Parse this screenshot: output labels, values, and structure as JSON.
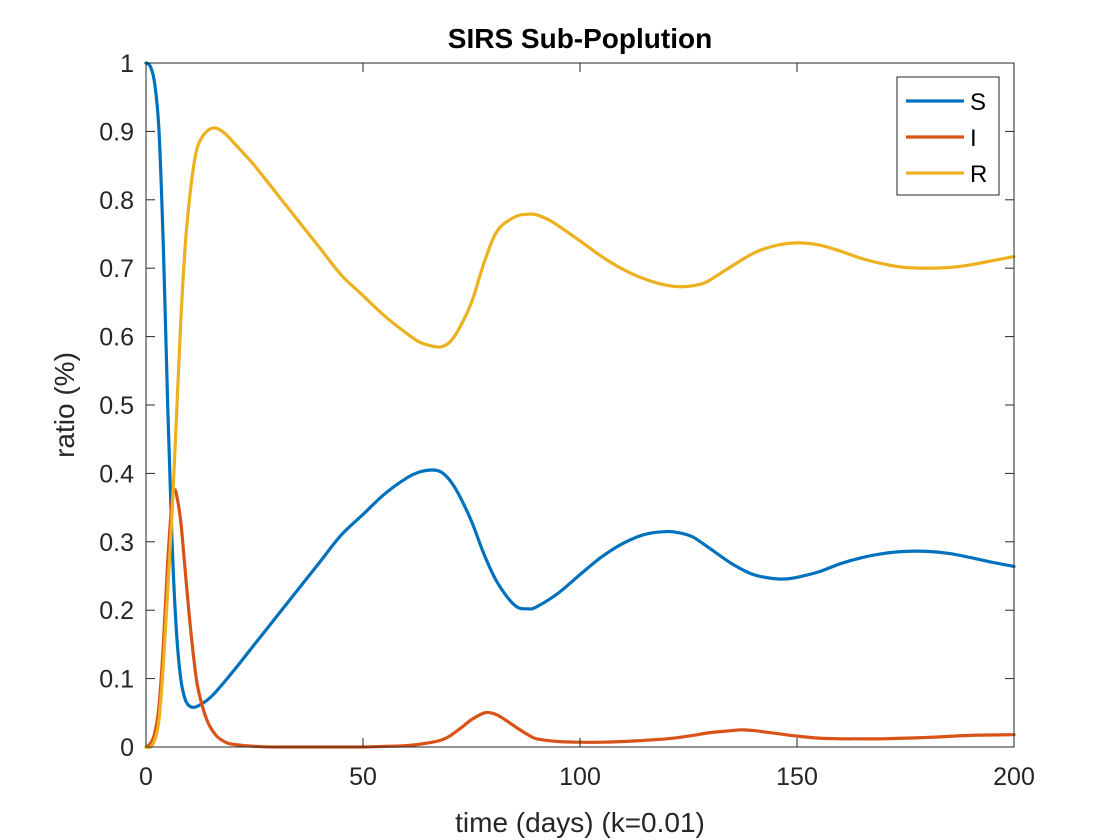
{
  "chart_data": {
    "type": "line",
    "title": "SIRS Sub-Poplution",
    "xlabel": "time (days) (k=0.01)",
    "ylabel": "ratio (%)",
    "xlim": [
      0,
      200
    ],
    "ylim": [
      0,
      1
    ],
    "xticks": [
      0,
      50,
      100,
      150,
      200
    ],
    "xtick_labels": [
      "0",
      "50",
      "100",
      "150",
      "200"
    ],
    "yticks": [
      0,
      0.1,
      0.2,
      0.3,
      0.4,
      0.5,
      0.6,
      0.7,
      0.8,
      0.9,
      1
    ],
    "ytick_labels": [
      "0",
      "0.1",
      "0.2",
      "0.3",
      "0.4",
      "0.5",
      "0.6",
      "0.7",
      "0.8",
      "0.9",
      "1"
    ],
    "grid": false,
    "legend_position": "top-right",
    "series": [
      {
        "name": "S",
        "color": "#0072BD",
        "x": [
          0,
          1,
          2,
          3,
          4,
          5,
          6,
          7,
          8,
          9,
          10,
          11,
          12,
          14,
          16,
          20,
          25,
          30,
          35,
          40,
          45,
          50,
          55,
          60,
          63,
          66,
          68,
          70,
          72,
          75,
          78,
          81,
          85,
          88,
          90,
          95,
          100,
          105,
          110,
          115,
          120,
          123,
          126,
          130,
          135,
          140,
          145,
          148,
          150,
          155,
          160,
          165,
          170,
          175,
          180,
          185,
          190,
          195,
          200
        ],
        "y": [
          1.0,
          0.995,
          0.97,
          0.9,
          0.73,
          0.5,
          0.3,
          0.17,
          0.1,
          0.07,
          0.06,
          0.058,
          0.06,
          0.068,
          0.08,
          0.11,
          0.15,
          0.19,
          0.23,
          0.27,
          0.31,
          0.34,
          0.37,
          0.393,
          0.402,
          0.405,
          0.402,
          0.39,
          0.37,
          0.33,
          0.28,
          0.24,
          0.207,
          0.202,
          0.205,
          0.225,
          0.252,
          0.278,
          0.298,
          0.311,
          0.315,
          0.313,
          0.307,
          0.29,
          0.268,
          0.252,
          0.246,
          0.246,
          0.248,
          0.256,
          0.268,
          0.277,
          0.283,
          0.286,
          0.286,
          0.283,
          0.277,
          0.27,
          0.264
        ]
      },
      {
        "name": "I",
        "color": "#D95319",
        "x": [
          0,
          1,
          2,
          3,
          4,
          5,
          6,
          6.5,
          7,
          8,
          9,
          10,
          11,
          12,
          14,
          16,
          18,
          20,
          25,
          30,
          40,
          50,
          55,
          60,
          65,
          68,
          70,
          73,
          75,
          78,
          80,
          82,
          85,
          88,
          90,
          95,
          100,
          105,
          110,
          120,
          125,
          130,
          135,
          137,
          140,
          145,
          150,
          155,
          160,
          165,
          170,
          180,
          190,
          200
        ],
        "y": [
          0.0,
          0.005,
          0.02,
          0.06,
          0.15,
          0.27,
          0.36,
          0.375,
          0.37,
          0.33,
          0.26,
          0.19,
          0.13,
          0.085,
          0.04,
          0.018,
          0.008,
          0.004,
          0.001,
          0.0,
          0.0,
          0.0,
          0.001,
          0.002,
          0.006,
          0.01,
          0.016,
          0.03,
          0.04,
          0.05,
          0.049,
          0.043,
          0.03,
          0.018,
          0.012,
          0.008,
          0.007,
          0.007,
          0.008,
          0.012,
          0.016,
          0.021,
          0.024,
          0.025,
          0.024,
          0.02,
          0.016,
          0.013,
          0.012,
          0.012,
          0.012,
          0.014,
          0.017,
          0.018
        ]
      },
      {
        "name": "R",
        "color": "#EDB120",
        "x": [
          0,
          1,
          2,
          3,
          4,
          5,
          6,
          7,
          8,
          9,
          10,
          11,
          12,
          14,
          16,
          18,
          20,
          25,
          30,
          35,
          40,
          45,
          50,
          55,
          60,
          63,
          66,
          68,
          70,
          72,
          75,
          78,
          81,
          85,
          88,
          90,
          93,
          95,
          100,
          105,
          110,
          115,
          120,
          124,
          128,
          130,
          135,
          140,
          145,
          150,
          155,
          160,
          165,
          170,
          175,
          180,
          185,
          190,
          195,
          200
        ],
        "y": [
          0.0,
          0.0,
          0.01,
          0.04,
          0.12,
          0.23,
          0.34,
          0.48,
          0.62,
          0.73,
          0.8,
          0.85,
          0.88,
          0.9,
          0.905,
          0.898,
          0.885,
          0.85,
          0.81,
          0.77,
          0.73,
          0.69,
          0.66,
          0.63,
          0.605,
          0.592,
          0.586,
          0.585,
          0.592,
          0.61,
          0.65,
          0.71,
          0.755,
          0.775,
          0.779,
          0.778,
          0.77,
          0.762,
          0.74,
          0.717,
          0.698,
          0.684,
          0.675,
          0.673,
          0.677,
          0.683,
          0.703,
          0.722,
          0.733,
          0.737,
          0.734,
          0.725,
          0.714,
          0.706,
          0.701,
          0.7,
          0.701,
          0.705,
          0.711,
          0.717
        ]
      }
    ]
  }
}
